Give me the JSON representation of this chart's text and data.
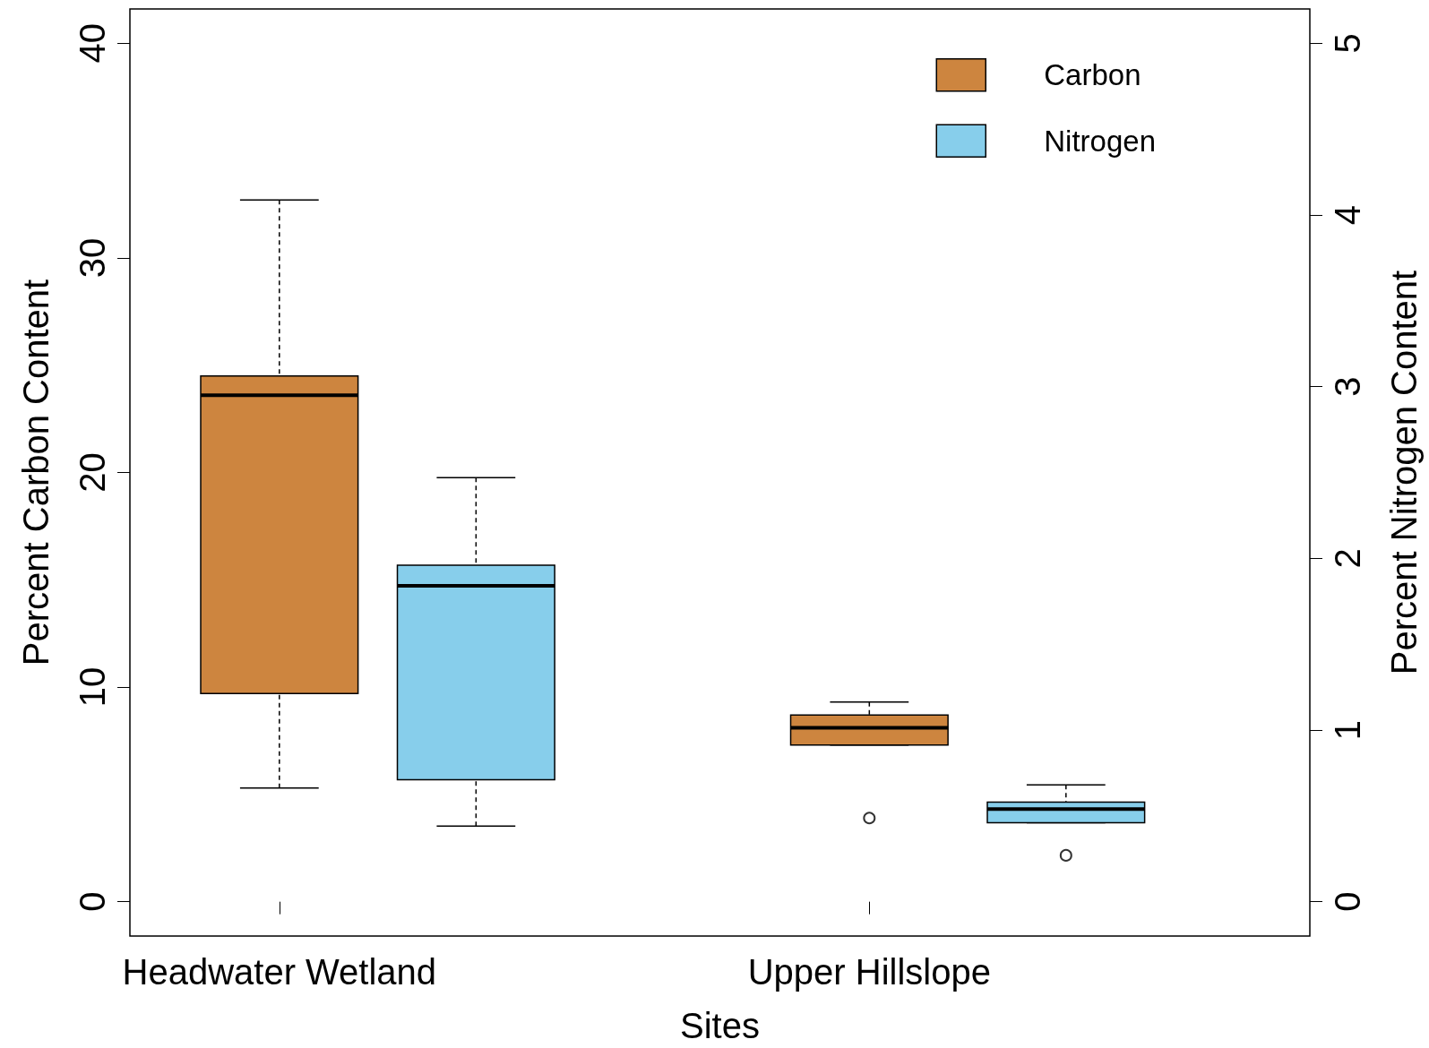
{
  "chart_data": {
    "type": "box",
    "xlabel": "Sites",
    "ylabel": "Percent Carbon Content",
    "y2label": "Percent Nitrogen Content",
    "categories": [
      "Headwater Wetland",
      "Upper Hillslope"
    ],
    "series": [
      {
        "name": "Carbon",
        "color": "#cd853f",
        "axis": "y",
        "boxes": [
          {
            "low": 5.3,
            "q1": 9.7,
            "median": 23.6,
            "q3": 24.5,
            "high": 32.7
          },
          {
            "low": 7.3,
            "q1": 7.3,
            "median": 8.1,
            "q3": 8.7,
            "high": 9.3,
            "outliers": [
              3.9
            ]
          }
        ]
      },
      {
        "name": "Nitrogen",
        "color": "#87ceeb",
        "axis": "y2",
        "boxes": [
          {
            "low": 0.44,
            "q1": 0.71,
            "median": 1.84,
            "q3": 1.96,
            "high": 2.47
          },
          {
            "low": 0.46,
            "q1": 0.46,
            "median": 0.54,
            "q3": 0.58,
            "high": 0.68,
            "outliers": [
              0.27
            ]
          }
        ]
      }
    ],
    "ylim": [
      -1.6,
      41.6
    ],
    "yticks": [
      0,
      10,
      20,
      30,
      40
    ],
    "y2lim": [
      -0.2,
      5.2
    ],
    "y2ticks": [
      0,
      1,
      2,
      3,
      4,
      5
    ],
    "grid": false,
    "legend": "top right"
  }
}
